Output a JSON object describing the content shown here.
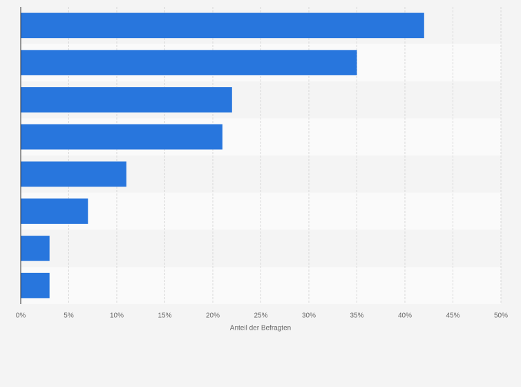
{
  "chart_data": {
    "type": "bar",
    "orientation": "horizontal",
    "x_label": "Anteil der Befragten",
    "categories": [
      null,
      null,
      null,
      null,
      null,
      null,
      null,
      null
    ],
    "values": [
      42,
      35,
      22,
      21,
      11,
      7,
      3,
      3
    ],
    "color": "#2876dd",
    "xlim": [
      0,
      50
    ],
    "xticks": [
      {
        "value": 0,
        "label": "0%"
      },
      {
        "value": 5,
        "label": "5%"
      },
      {
        "value": 10,
        "label": "10%"
      },
      {
        "value": 15,
        "label": "15%"
      },
      {
        "value": 20,
        "label": "20%"
      },
      {
        "value": 25,
        "label": "25%"
      },
      {
        "value": 30,
        "label": "30%"
      },
      {
        "value": 35,
        "label": "35%"
      },
      {
        "value": 40,
        "label": "40%"
      },
      {
        "value": 45,
        "label": "45%"
      },
      {
        "value": 50,
        "label": "50%"
      }
    ],
    "grid": true
  }
}
